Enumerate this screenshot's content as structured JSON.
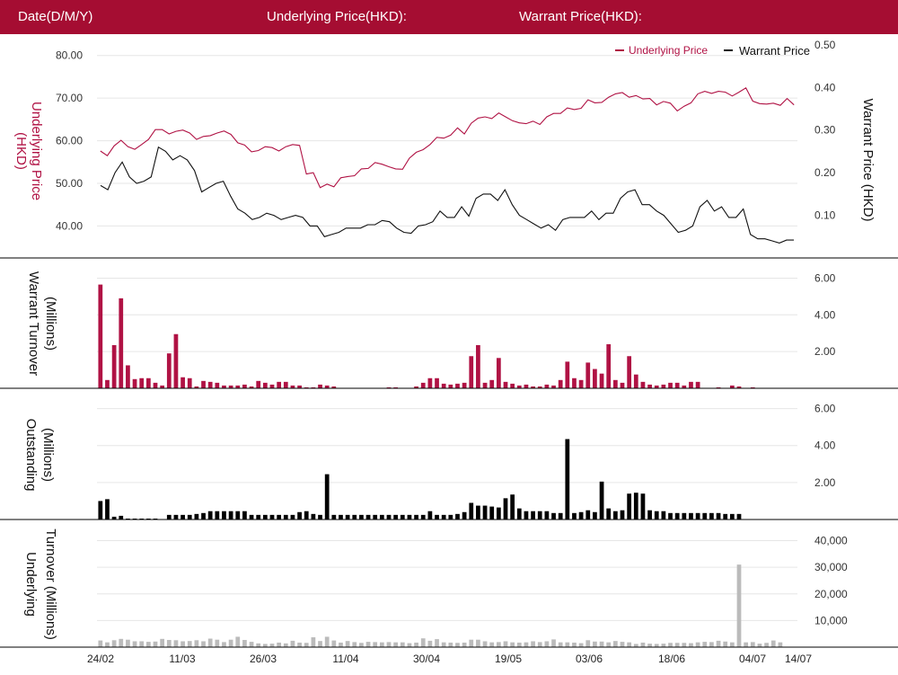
{
  "header": {
    "date_label": "Date(D/M/Y)",
    "underlying_label": "Underlying Price(HKD):",
    "warrant_label": "Warrant Price(HKD):"
  },
  "colors": {
    "header_bg": "#a50d32",
    "underlying": "#b01244",
    "warrant": "#111111",
    "outstanding": "#000000",
    "underlying_turnover": "#bbbbbb",
    "grid": "#e6e6e6"
  },
  "legend": {
    "underlying": "Underlying Price",
    "warrant": "Warrant Price"
  },
  "x_tick_labels": [
    "24/02",
    "11/03",
    "26/03",
    "11/04",
    "30/04",
    "19/05",
    "03/06",
    "18/06",
    "04/07",
    "14/07"
  ],
  "chart_data": [
    {
      "type": "line",
      "title": "",
      "ylabel": "Underlying Price (HKD)",
      "y2label": "Warrant  Price (HKD)",
      "ylim": [
        32.5,
        85
      ],
      "y_ticks": [
        "80.00",
        "70.00",
        "60.00",
        "50.00",
        "40.00"
      ],
      "y2lim": [
        0.0,
        0.525
      ],
      "y2_ticks": [
        "0.50",
        "0.40",
        "0.30",
        "0.20",
        "0.10"
      ],
      "grid": true,
      "legend_position": "top-right",
      "series": [
        {
          "name": "Underlying Price",
          "axis": "left",
          "values": [
            57.6,
            56.5,
            58.8,
            60.1,
            58.6,
            58.0,
            59.1,
            60.3,
            62.6,
            62.6,
            61.6,
            62.2,
            62.5,
            61.8,
            60.3,
            61.0,
            61.2,
            61.8,
            62.3,
            61.5,
            59.5,
            59.0,
            57.4,
            57.7,
            58.6,
            58.4,
            57.6,
            58.6,
            59.1,
            58.9,
            52.2,
            52.5,
            49.0,
            49.8,
            49.2,
            51.3,
            51.6,
            51.8,
            53.4,
            53.5,
            54.9,
            54.5,
            53.9,
            53.4,
            53.3,
            55.9,
            57.3,
            57.9,
            59.1,
            60.8,
            60.6,
            61.3,
            63.0,
            61.6,
            64.1,
            65.3,
            65.6,
            65.2,
            66.5,
            65.6,
            64.7,
            64.2,
            64.0,
            64.6,
            63.8,
            65.6,
            66.4,
            66.4,
            67.7,
            67.3,
            67.6,
            69.6,
            68.9,
            69.0,
            70.2,
            71.0,
            71.3,
            70.2,
            70.6,
            69.8,
            69.9,
            68.4,
            69.2,
            68.8,
            67.0,
            68.1,
            68.9,
            71.0,
            71.6,
            71.1,
            71.6,
            71.4,
            70.5,
            71.4,
            72.4,
            69.3,
            68.7,
            68.6,
            68.8,
            68.3,
            69.9,
            68.4
          ]
        },
        {
          "name": "Warrant Price",
          "axis": "right",
          "values": [
            0.17,
            0.16,
            0.2,
            0.225,
            0.19,
            0.175,
            0.18,
            0.19,
            0.26,
            0.25,
            0.23,
            0.24,
            0.23,
            0.205,
            0.155,
            0.165,
            0.175,
            0.18,
            0.145,
            0.115,
            0.105,
            0.09,
            0.095,
            0.105,
            0.1,
            0.09,
            0.095,
            0.1,
            0.095,
            0.075,
            0.075,
            0.05,
            0.055,
            0.06,
            0.07,
            0.07,
            0.07,
            0.078,
            0.078,
            0.088,
            0.085,
            0.07,
            0.06,
            0.058,
            0.075,
            0.078,
            0.085,
            0.11,
            0.095,
            0.095,
            0.12,
            0.098,
            0.14,
            0.15,
            0.15,
            0.135,
            0.16,
            0.125,
            0.1,
            0.09,
            0.08,
            0.07,
            0.078,
            0.065,
            0.09,
            0.095,
            0.095,
            0.095,
            0.11,
            0.09,
            0.105,
            0.105,
            0.14,
            0.155,
            0.16,
            0.125,
            0.125,
            0.11,
            0.1,
            0.08,
            0.06,
            0.065,
            0.075,
            0.12,
            0.135,
            0.11,
            0.12,
            0.095,
            0.095,
            0.115,
            0.055,
            0.045,
            0.045,
            0.04,
            0.035,
            0.042,
            0.042
          ]
        }
      ]
    },
    {
      "type": "bar",
      "title": "",
      "ylabel": "Warrant  Turnover (Millions)",
      "ylim": [
        0,
        7.05
      ],
      "y_ticks": [
        "6.00",
        "4.00",
        "2.00"
      ],
      "grid": true,
      "values": [
        5.65,
        0.45,
        2.35,
        4.9,
        1.25,
        0.5,
        0.55,
        0.55,
        0.3,
        0.15,
        1.9,
        2.95,
        0.6,
        0.55,
        0.1,
        0.4,
        0.35,
        0.3,
        0.15,
        0.15,
        0.15,
        0.2,
        0.1,
        0.4,
        0.3,
        0.2,
        0.35,
        0.35,
        0.15,
        0.15,
        0.05,
        0.05,
        0.2,
        0.15,
        0.1,
        0.0,
        0.0,
        0.0,
        0.0,
        0.0,
        0.0,
        0.0,
        0.05,
        0.05,
        0.0,
        0.0,
        0.1,
        0.3,
        0.55,
        0.55,
        0.25,
        0.2,
        0.25,
        0.3,
        1.75,
        2.35,
        0.3,
        0.45,
        1.65,
        0.35,
        0.25,
        0.15,
        0.2,
        0.1,
        0.1,
        0.2,
        0.15,
        0.45,
        1.45,
        0.55,
        0.45,
        1.4,
        1.05,
        0.8,
        2.4,
        0.45,
        0.3,
        1.75,
        0.75,
        0.35,
        0.2,
        0.15,
        0.2,
        0.3,
        0.3,
        0.15,
        0.35,
        0.35,
        0.0,
        0.0,
        0.05,
        0.0,
        0.15,
        0.1,
        0.0,
        0.05,
        0.0,
        0.0,
        0.0,
        0.0,
        0.0,
        0.0
      ]
    },
    {
      "type": "bar",
      "title": "",
      "ylabel": "Outstanding (Millions)",
      "ylim": [
        0,
        7.05
      ],
      "y_ticks": [
        "6.00",
        "4.00",
        "2.00"
      ],
      "grid": true,
      "values": [
        1.0,
        1.1,
        0.15,
        0.2,
        0.05,
        0.05,
        0.05,
        0.05,
        0.05,
        0.0,
        0.25,
        0.25,
        0.25,
        0.25,
        0.3,
        0.35,
        0.45,
        0.45,
        0.45,
        0.45,
        0.45,
        0.45,
        0.25,
        0.25,
        0.25,
        0.25,
        0.25,
        0.25,
        0.25,
        0.4,
        0.45,
        0.3,
        0.25,
        2.45,
        0.25,
        0.25,
        0.25,
        0.25,
        0.25,
        0.25,
        0.25,
        0.25,
        0.25,
        0.25,
        0.25,
        0.25,
        0.25,
        0.25,
        0.45,
        0.25,
        0.25,
        0.25,
        0.3,
        0.4,
        0.9,
        0.75,
        0.75,
        0.7,
        0.65,
        1.15,
        1.35,
        0.6,
        0.45,
        0.45,
        0.45,
        0.45,
        0.35,
        0.35,
        4.35,
        0.35,
        0.4,
        0.5,
        0.4,
        2.05,
        0.6,
        0.45,
        0.5,
        1.4,
        1.45,
        1.4,
        0.5,
        0.45,
        0.45,
        0.35,
        0.35,
        0.35,
        0.35,
        0.35,
        0.35,
        0.35,
        0.35,
        0.3,
        0.3,
        0.3,
        0.0,
        0.0,
        0.0,
        0.0,
        0.0,
        0.0,
        0.0,
        0.0
      ]
    },
    {
      "type": "bar",
      "title": "",
      "ylabel": "Underlying Turnover (Millions)",
      "ylim": [
        0,
        47600
      ],
      "y_ticks": [
        "40,000",
        "30,000",
        "20,000",
        "10,000"
      ],
      "grid": true,
      "values": [
        2500,
        1800,
        2600,
        3100,
        2800,
        2200,
        2200,
        2000,
        2100,
        3100,
        2700,
        2600,
        2200,
        2300,
        2600,
        2200,
        3200,
        2800,
        1900,
        2800,
        3900,
        2700,
        2000,
        1400,
        1200,
        1300,
        1700,
        1400,
        2400,
        1700,
        1600,
        3700,
        2300,
        3900,
        2500,
        1700,
        2300,
        1900,
        1600,
        2000,
        1900,
        1800,
        1900,
        1800,
        1800,
        1500,
        1700,
        3300,
        2400,
        3000,
        1800,
        1700,
        1600,
        1700,
        2800,
        2800,
        2200,
        1800,
        1900,
        2200,
        1800,
        1700,
        1800,
        2200,
        1900,
        2200,
        2900,
        1800,
        1800,
        1700,
        1500,
        2600,
        2100,
        2100,
        1800,
        2300,
        2000,
        1800,
        1200,
        1700,
        1300,
        1200,
        1300,
        1600,
        1600,
        1600,
        1500,
        1800,
        2000,
        1900,
        2400,
        2100,
        1800,
        31000,
        1800,
        1900,
        1300,
        1600,
        2500,
        1800,
        0,
        0
      ]
    }
  ]
}
